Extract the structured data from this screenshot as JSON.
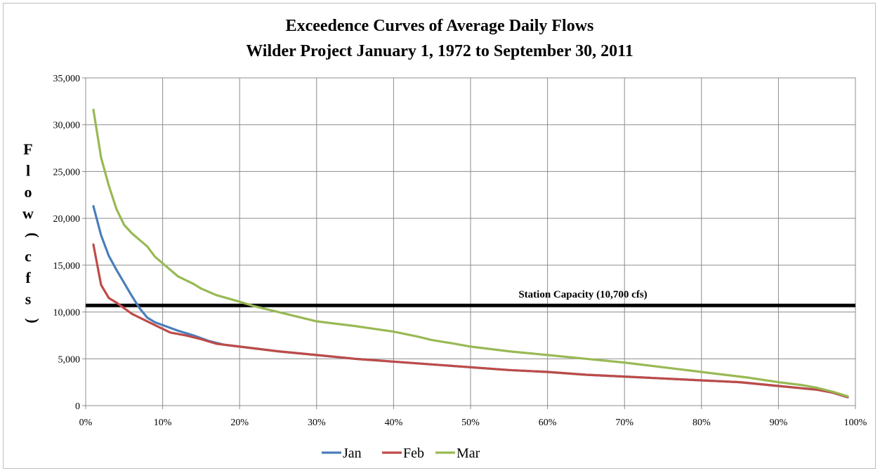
{
  "chart_data": {
    "type": "line",
    "title": [
      "Exceedence Curves of Average Daily Flows",
      "Wilder Project January 1, 1972 to September 30, 2011"
    ],
    "ylabel_chars": [
      "F",
      "l",
      "o",
      "w",
      "(",
      "c",
      "f",
      "s",
      ")"
    ],
    "xlabel": "",
    "xlim": [
      0,
      100
    ],
    "ylim": [
      0,
      35000
    ],
    "x_ticks": [
      "0%",
      "10%",
      "20%",
      "30%",
      "40%",
      "50%",
      "60%",
      "70%",
      "80%",
      "90%",
      "100%"
    ],
    "y_ticks": [
      "0",
      "5,000",
      "10,000",
      "15,000",
      "20,000",
      "25,000",
      "30,000",
      "35,000"
    ],
    "grid": true,
    "legend_position": "bottom",
    "reference_line": {
      "y": 10700,
      "label": "Station Capacity (10,700 cfs)",
      "color": "#000000"
    },
    "series": [
      {
        "name": "Jan",
        "color": "#4a7ebb",
        "points": [
          [
            1,
            21300
          ],
          [
            2,
            18200
          ],
          [
            3,
            16000
          ],
          [
            4,
            14500
          ],
          [
            5,
            13100
          ],
          [
            6,
            11700
          ],
          [
            7,
            10400
          ],
          [
            8,
            9400
          ],
          [
            9,
            8900
          ],
          [
            10,
            8600
          ],
          [
            12,
            8000
          ],
          [
            14,
            7500
          ],
          [
            16,
            6900
          ],
          [
            18,
            6500
          ],
          [
            20,
            6300
          ],
          [
            25,
            5800
          ],
          [
            30,
            5400
          ],
          [
            35,
            5000
          ],
          [
            40,
            4700
          ],
          [
            45,
            4400
          ],
          [
            50,
            4100
          ],
          [
            55,
            3800
          ],
          [
            60,
            3600
          ],
          [
            65,
            3300
          ],
          [
            70,
            3100
          ],
          [
            75,
            2900
          ],
          [
            80,
            2700
          ],
          [
            85,
            2500
          ],
          [
            90,
            2100
          ],
          [
            95,
            1700
          ],
          [
            97,
            1400
          ],
          [
            99,
            900
          ]
        ]
      },
      {
        "name": "Feb",
        "color": "#be4b48",
        "points": [
          [
            1,
            17200
          ],
          [
            2,
            12900
          ],
          [
            3,
            11500
          ],
          [
            4,
            11000
          ],
          [
            5,
            10400
          ],
          [
            6,
            9800
          ],
          [
            7,
            9400
          ],
          [
            8,
            9000
          ],
          [
            9,
            8600
          ],
          [
            10,
            8200
          ],
          [
            11,
            7800
          ],
          [
            13,
            7500
          ],
          [
            15,
            7100
          ],
          [
            17,
            6600
          ],
          [
            20,
            6300
          ],
          [
            25,
            5800
          ],
          [
            30,
            5400
          ],
          [
            35,
            5000
          ],
          [
            40,
            4700
          ],
          [
            45,
            4400
          ],
          [
            50,
            4100
          ],
          [
            55,
            3800
          ],
          [
            60,
            3600
          ],
          [
            65,
            3300
          ],
          [
            70,
            3100
          ],
          [
            75,
            2900
          ],
          [
            80,
            2700
          ],
          [
            85,
            2500
          ],
          [
            90,
            2100
          ],
          [
            95,
            1700
          ],
          [
            97,
            1400
          ],
          [
            99,
            900
          ]
        ]
      },
      {
        "name": "Mar",
        "color": "#98b954",
        "points": [
          [
            1,
            31600
          ],
          [
            2,
            26500
          ],
          [
            3,
            23500
          ],
          [
            4,
            21000
          ],
          [
            5,
            19300
          ],
          [
            6,
            18400
          ],
          [
            7,
            17700
          ],
          [
            8,
            17000
          ],
          [
            9,
            15900
          ],
          [
            10,
            15200
          ],
          [
            12,
            13800
          ],
          [
            14,
            13000
          ],
          [
            15,
            12500
          ],
          [
            17,
            11800
          ],
          [
            20,
            11100
          ],
          [
            22,
            10600
          ],
          [
            25,
            10000
          ],
          [
            30,
            9000
          ],
          [
            35,
            8500
          ],
          [
            40,
            7900
          ],
          [
            43,
            7400
          ],
          [
            45,
            7000
          ],
          [
            48,
            6600
          ],
          [
            50,
            6300
          ],
          [
            55,
            5800
          ],
          [
            60,
            5400
          ],
          [
            65,
            5000
          ],
          [
            70,
            4600
          ],
          [
            75,
            4100
          ],
          [
            80,
            3600
          ],
          [
            83,
            3300
          ],
          [
            86,
            3000
          ],
          [
            90,
            2500
          ],
          [
            93,
            2200
          ],
          [
            95,
            1900
          ],
          [
            97,
            1500
          ],
          [
            99,
            1000
          ]
        ]
      }
    ]
  }
}
